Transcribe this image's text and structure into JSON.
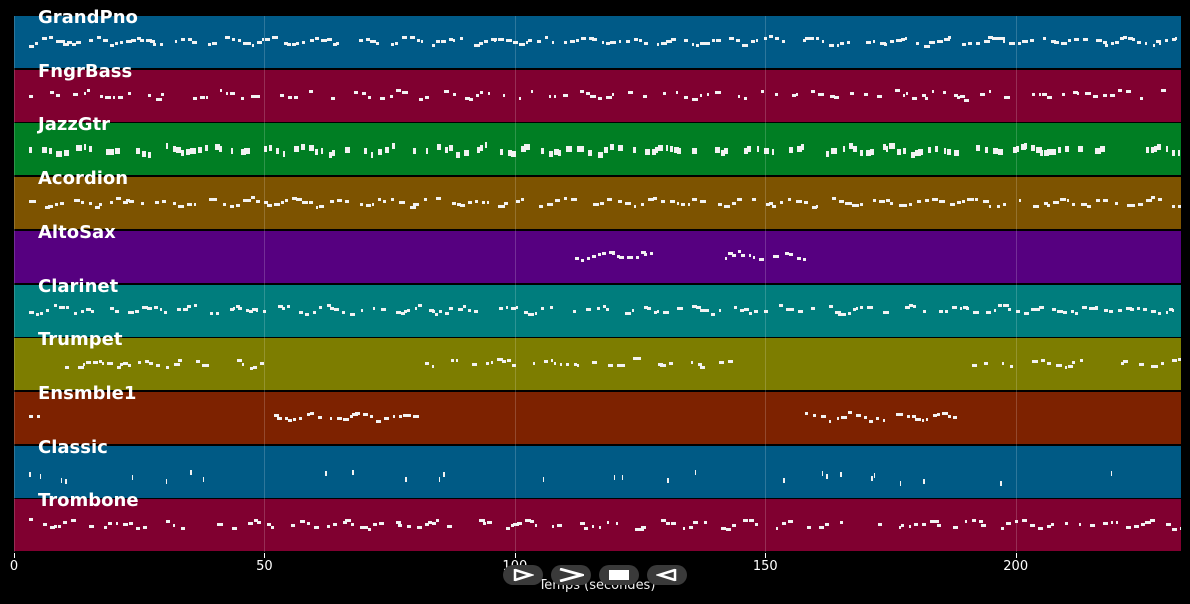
{
  "lanes": [
    {
      "name": "GrandPno",
      "color": "#005a87"
    },
    {
      "name": "FngrBass",
      "color": "#800030"
    },
    {
      "name": "JazzGtr",
      "color": "#007e23"
    },
    {
      "name": "Acordion",
      "color": "#7d5300"
    },
    {
      "name": "AltoSax",
      "color": "#560080"
    },
    {
      "name": "Clarinet",
      "color": "#007d7d"
    },
    {
      "name": "Trumpet",
      "color": "#7d7d00"
    },
    {
      "name": "Ensmble1",
      "color": "#7d2200"
    },
    {
      "name": "Classic",
      "color": "#005a85"
    },
    {
      "name": "Trombone",
      "color": "#800030"
    }
  ],
  "axis": {
    "label": "Temps (secondes)",
    "range": [
      0,
      233
    ],
    "ticks": [
      0,
      50,
      100,
      150,
      200
    ]
  },
  "controls": [
    {
      "name": "play-button",
      "icon": "play-outline-icon"
    },
    {
      "name": "forward-button",
      "icon": "chevron-right-icon"
    },
    {
      "name": "stop-button",
      "icon": "stop-icon"
    },
    {
      "name": "rewind-button",
      "icon": "play-reverse-outline-icon"
    }
  ]
}
